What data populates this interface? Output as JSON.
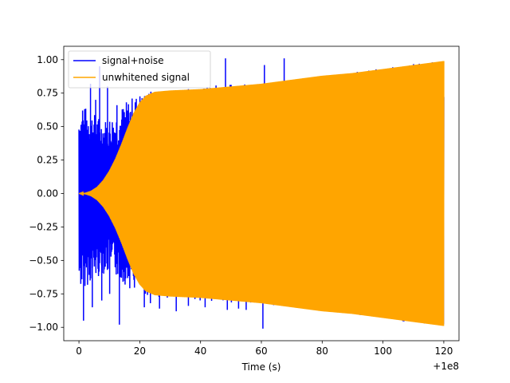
{
  "chart_data": {
    "type": "line",
    "title": "",
    "xlabel": "Time (s)",
    "ylabel": "",
    "x_offset_label": "+1e8",
    "xlim": [
      -5,
      125
    ],
    "ylim": [
      -1.1,
      1.1
    ],
    "x_ticks": [
      0,
      20,
      40,
      60,
      80,
      100,
      120
    ],
    "x_tick_labels": [
      "0",
      "20",
      "40",
      "60",
      "80",
      "100",
      "120"
    ],
    "y_ticks": [
      1.0,
      0.75,
      0.5,
      0.25,
      0.0,
      -0.25,
      -0.5,
      -0.75,
      -1.0
    ],
    "y_tick_labels": [
      "1.00",
      "0.75",
      "0.50",
      "0.25",
      "0.00",
      "−0.25",
      "−0.50",
      "−0.75",
      "−1.00"
    ],
    "grid": false,
    "legend_position": "top-left",
    "series": [
      {
        "name": "signal+noise",
        "color": "#0000ff",
        "envelope_x": [
          0,
          2,
          5,
          8,
          12,
          16,
          20,
          25,
          30,
          40,
          50,
          60,
          70,
          80,
          90,
          100,
          110,
          120
        ],
        "envelope_upper": [
          0.62,
          0.65,
          0.6,
          0.55,
          0.6,
          0.7,
          0.76,
          0.78,
          0.78,
          0.8,
          0.82,
          0.83,
          0.85,
          0.88,
          0.91,
          0.94,
          0.97,
          0.99
        ],
        "envelope_lower": [
          -0.72,
          -0.7,
          -0.65,
          -0.6,
          -0.62,
          -0.7,
          -0.76,
          -0.78,
          -0.78,
          -0.8,
          -0.82,
          -0.83,
          -0.85,
          -0.88,
          -0.91,
          -0.94,
          -0.97,
          -0.99
        ],
        "spikes": [
          {
            "x": 1.2,
            "y": 0.62
          },
          {
            "x": 1.5,
            "y": -0.95
          },
          {
            "x": 3.8,
            "y": 0.82
          },
          {
            "x": 4.4,
            "y": -0.85
          },
          {
            "x": 5.5,
            "y": 0.7
          },
          {
            "x": 6.8,
            "y": 0.95
          },
          {
            "x": 7.5,
            "y": -0.8
          },
          {
            "x": 9.4,
            "y": 0.8
          },
          {
            "x": 10.1,
            "y": -0.75
          },
          {
            "x": 12.5,
            "y": 0.66
          },
          {
            "x": 13.3,
            "y": -0.98
          },
          {
            "x": 14.5,
            "y": 0.62
          },
          {
            "x": 21.5,
            "y": -0.85
          },
          {
            "x": 23.5,
            "y": -0.82
          },
          {
            "x": 26.5,
            "y": -0.86
          },
          {
            "x": 32.0,
            "y": -0.88
          },
          {
            "x": 36.0,
            "y": -0.84
          },
          {
            "x": 41.5,
            "y": -0.85
          },
          {
            "x": 48.2,
            "y": 1.01
          },
          {
            "x": 48.8,
            "y": -0.87
          },
          {
            "x": 52.5,
            "y": -0.86
          },
          {
            "x": 55.0,
            "y": -0.87
          },
          {
            "x": 60.5,
            "y": -1.01
          },
          {
            "x": 61.0,
            "y": 0.96
          },
          {
            "x": 67.5,
            "y": 1.01
          },
          {
            "x": 74.0,
            "y": -0.86
          }
        ]
      },
      {
        "name": "unwhitened signal",
        "color": "#ffa500",
        "envelope_x": [
          0,
          2,
          4,
          6,
          8,
          10,
          12,
          14,
          16,
          18,
          20,
          22,
          25,
          30,
          40,
          50,
          60,
          70,
          80,
          90,
          100,
          110,
          120
        ],
        "envelope_upper": [
          0.0,
          0.005,
          0.02,
          0.05,
          0.1,
          0.17,
          0.26,
          0.37,
          0.49,
          0.6,
          0.68,
          0.73,
          0.76,
          0.77,
          0.78,
          0.8,
          0.82,
          0.85,
          0.88,
          0.9,
          0.93,
          0.96,
          0.99
        ],
        "envelope_lower": [
          0.0,
          -0.005,
          -0.02,
          -0.05,
          -0.1,
          -0.17,
          -0.26,
          -0.37,
          -0.49,
          -0.6,
          -0.68,
          -0.73,
          -0.76,
          -0.77,
          -0.78,
          -0.8,
          -0.82,
          -0.85,
          -0.88,
          -0.9,
          -0.93,
          -0.96,
          -0.99
        ]
      }
    ]
  }
}
